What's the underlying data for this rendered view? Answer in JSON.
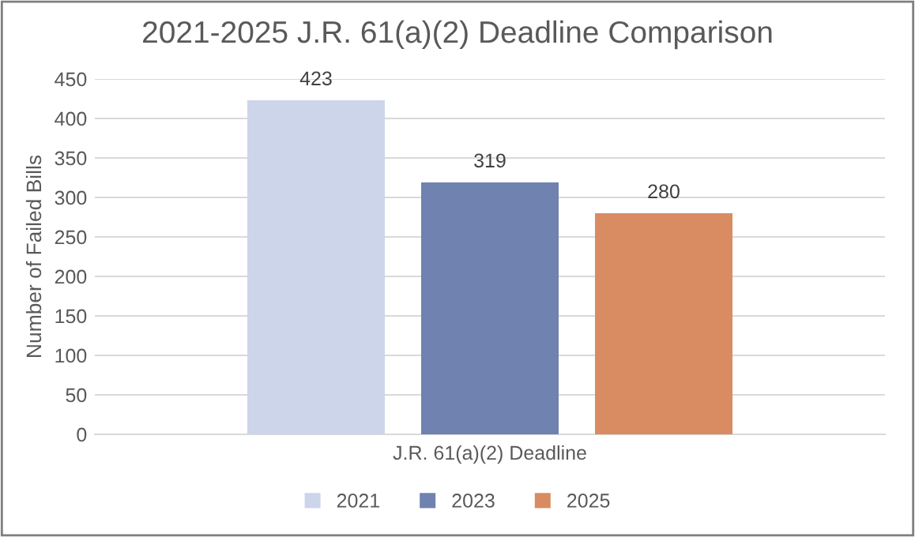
{
  "chart_data": {
    "type": "bar",
    "title": "2021-2025 J.R. 61(a)(2) Deadline Comparison",
    "ylabel": "Number of Failed Bills",
    "categories": [
      "J.R. 61(a)(2) Deadline"
    ],
    "series": [
      {
        "name": "2021",
        "color": "#cdd5ea",
        "values": [
          423
        ]
      },
      {
        "name": "2023",
        "color": "#6f82b0",
        "values": [
          319
        ]
      },
      {
        "name": "2025",
        "color": "#d98b62",
        "values": [
          280
        ]
      }
    ],
    "ylim": [
      0,
      450
    ],
    "yticks": [
      0,
      50,
      100,
      150,
      200,
      250,
      300,
      350,
      400,
      450
    ],
    "grid": "y",
    "legend": "bottom",
    "data_labels": true
  }
}
